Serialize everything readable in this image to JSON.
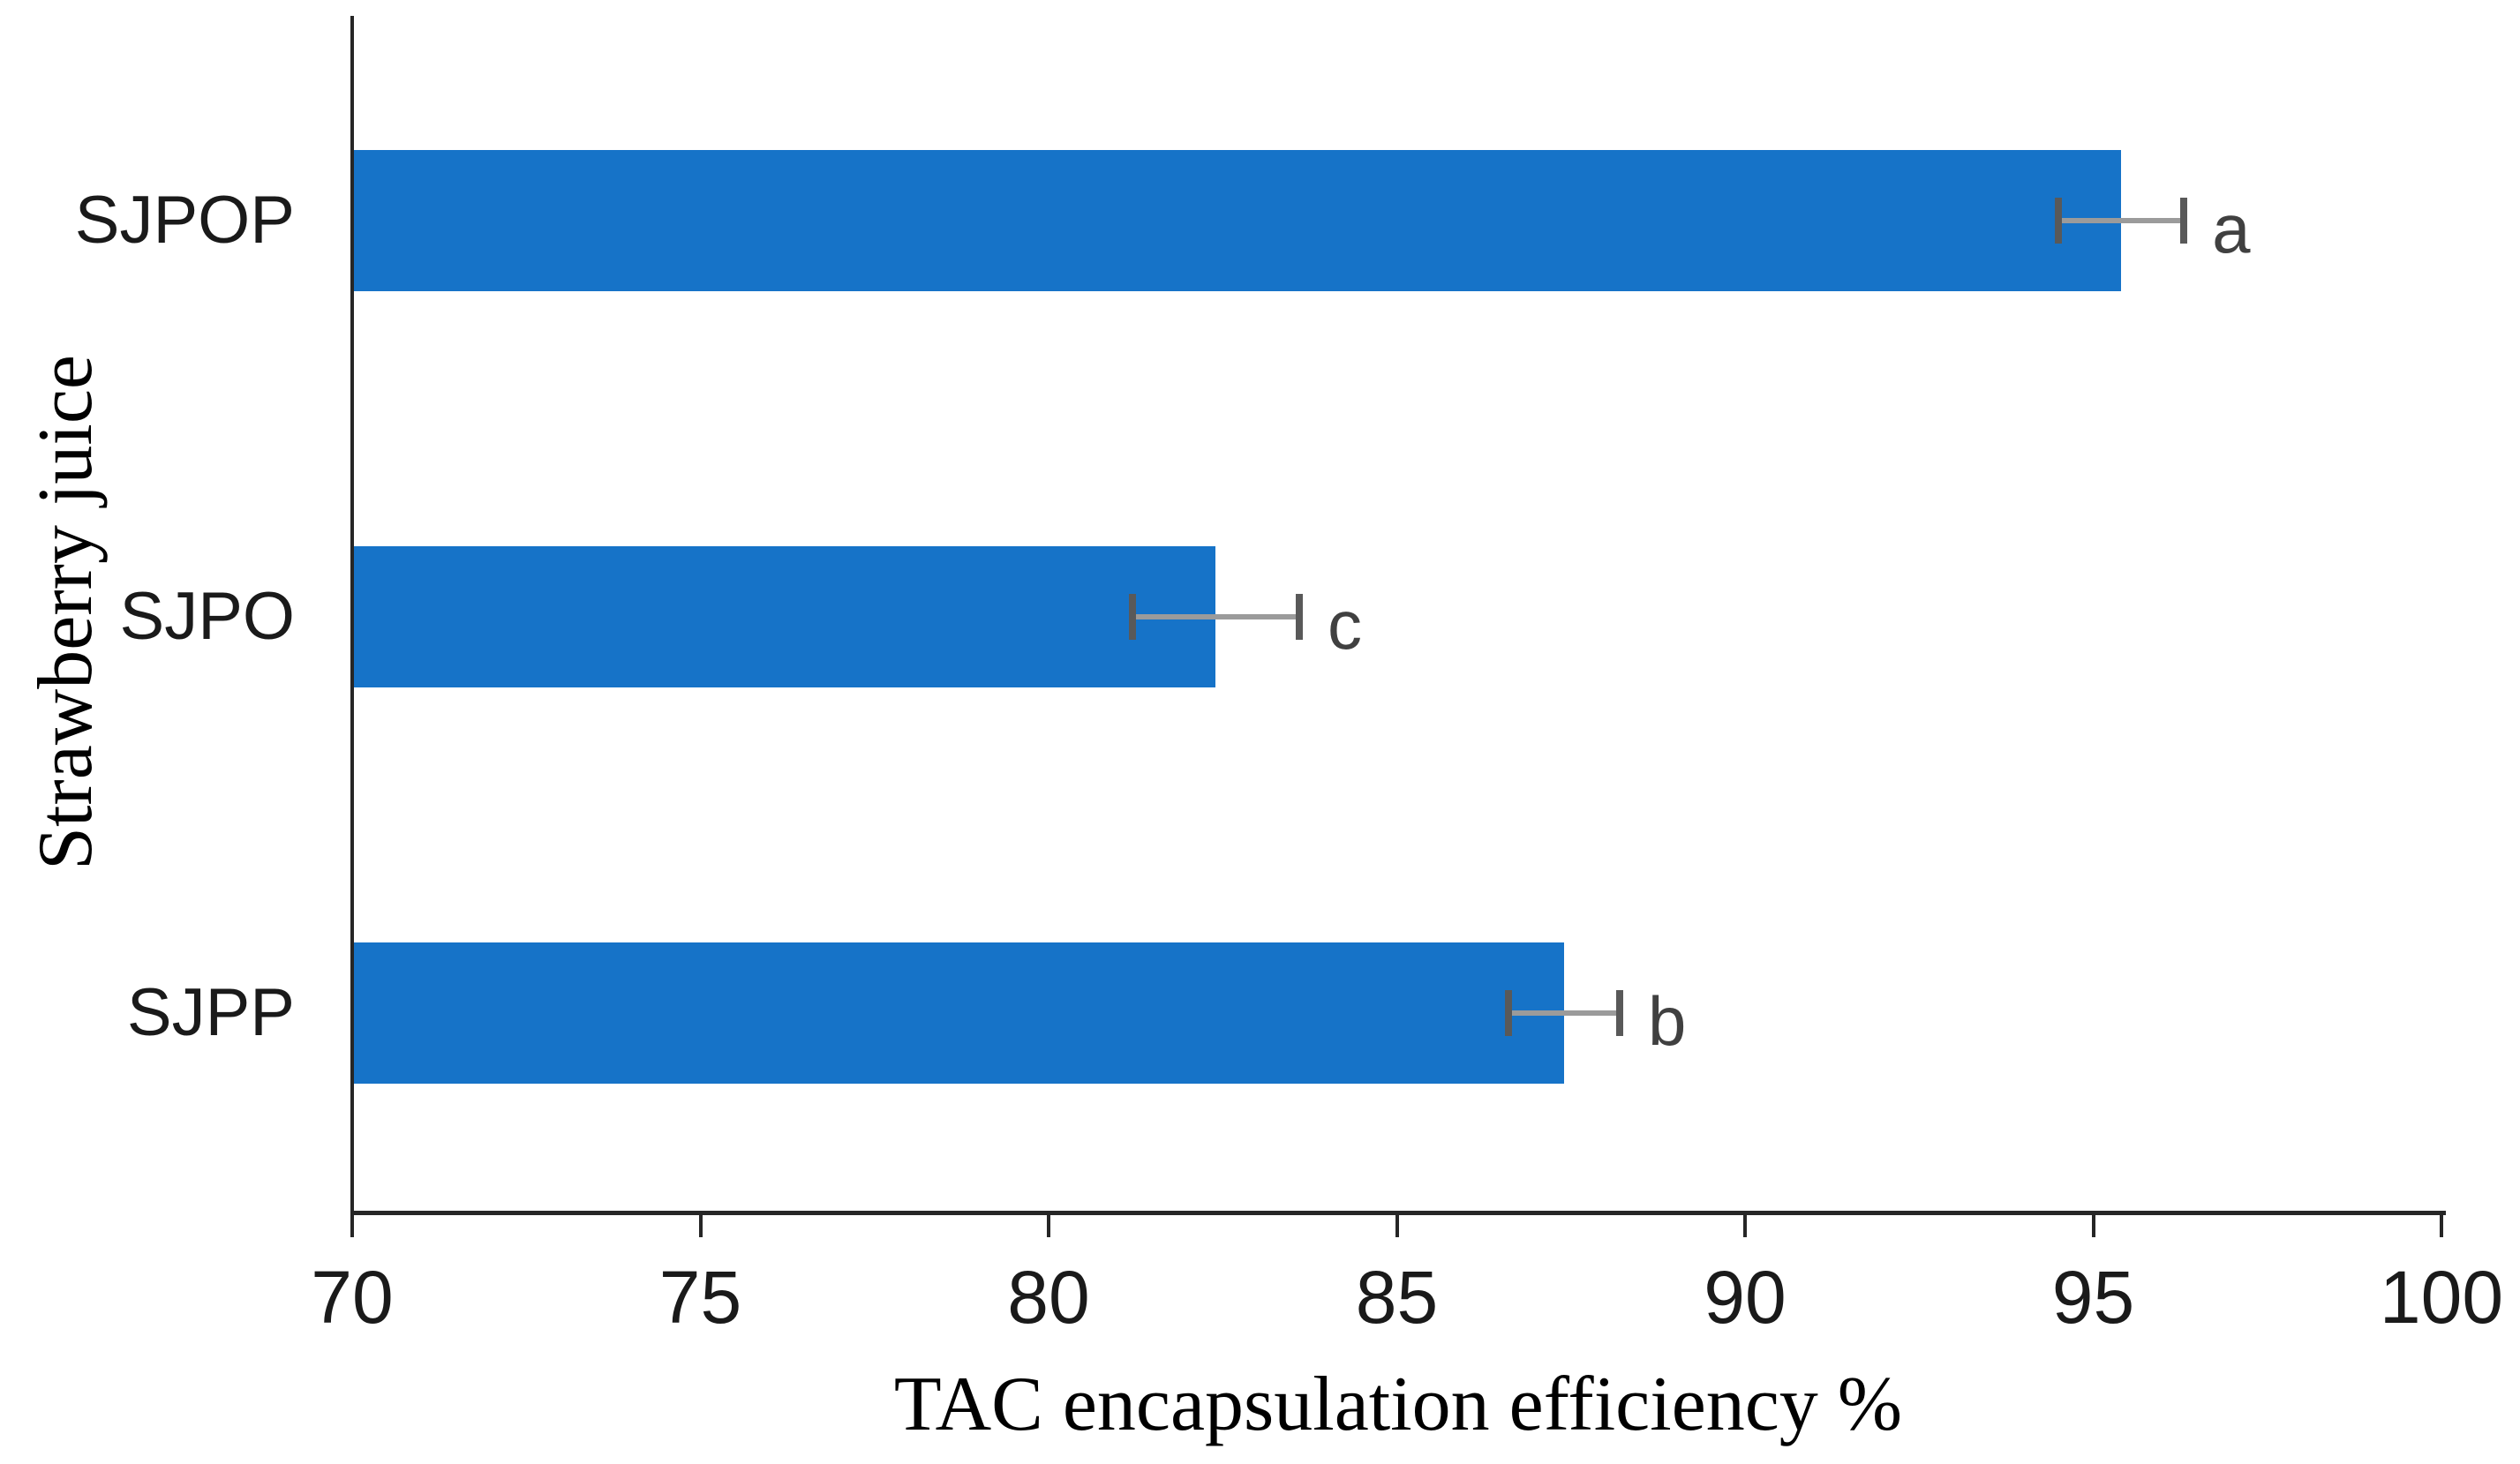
{
  "figure": {
    "background_color": "#ffffff",
    "bar_color": "#1673C8",
    "axis_color": "#262626",
    "error_bar_line_color": "#9B9B9B",
    "error_bar_cap_color": "#595959",
    "significance_letter_color": "#404040"
  },
  "chart_data": {
    "type": "bar",
    "orientation": "horizontal",
    "title": "",
    "xlabel": "TAC encapsulation efficiency %",
    "ylabel": "Strawberry juice",
    "categories": [
      "SJPOP",
      "SJPO",
      "SJPP"
    ],
    "values": [
      95.4,
      82.4,
      87.4
    ],
    "error_bars": [
      0.9,
      1.2,
      0.8
    ],
    "significance_letters": [
      "a",
      "c",
      "b"
    ],
    "xlim": [
      70,
      100
    ],
    "x_ticks": [
      70,
      75,
      80,
      85,
      90,
      95,
      100
    ],
    "grid": false,
    "legend": false
  }
}
